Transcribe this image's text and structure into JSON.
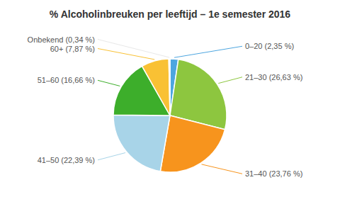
{
  "chart_data": {
    "type": "pie",
    "title": "% Alcoholinbreuken per leeftijd – 1e semester 2016",
    "categories": [
      "0–20 (2,35 %)",
      "21–30 (26,63 %)",
      "31–40 (23,76 %)",
      "41–50 (22,39 %)",
      "51–60 (16,66 %)",
      "60+ (7,87 %)",
      "Onbekend (0,34 %)"
    ],
    "values": [
      2.35,
      26.63,
      23.76,
      22.39,
      16.66,
      7.87,
      0.34
    ],
    "colors": [
      "#4DA6E0",
      "#8DC63F",
      "#F7941D",
      "#A8D4E8",
      "#3DAE2B",
      "#F9C134",
      "#E8E8E8"
    ]
  }
}
